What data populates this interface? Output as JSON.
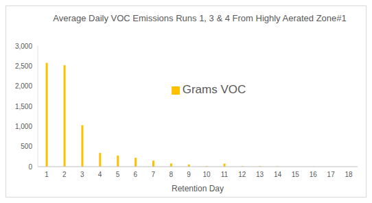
{
  "chart_data": {
    "type": "bar",
    "title": "Average Daily VOC Emissions Runs 1, 3 & 4 From Highly Aerated Zone#1",
    "x_label": "Retention Day",
    "categories": [
      "1",
      "2",
      "3",
      "4",
      "5",
      "6",
      "7",
      "8",
      "9",
      "10",
      "11",
      "12",
      "13",
      "14",
      "15",
      "16",
      "17",
      "18"
    ],
    "series": [
      {
        "name": "Grams VOC",
        "color": "#ffc000",
        "values": [
          2580,
          2520,
          1030,
          340,
          275,
          220,
          150,
          80,
          55,
          15,
          75,
          15,
          15,
          8,
          3,
          5,
          2,
          2
        ]
      }
    ],
    "ylim": [
      0,
      3000
    ],
    "yticks": [
      0,
      500,
      {
        "value": 1000,
        "label": "1,000"
      },
      {
        "value": 1500,
        "label": "1,500"
      },
      {
        "value": 2000,
        "label": "2,000"
      },
      {
        "value": 2500,
        "label": "2,500"
      },
      {
        "value": 3000,
        "label": "3,000"
      }
    ],
    "grid": false,
    "legend": "center"
  }
}
